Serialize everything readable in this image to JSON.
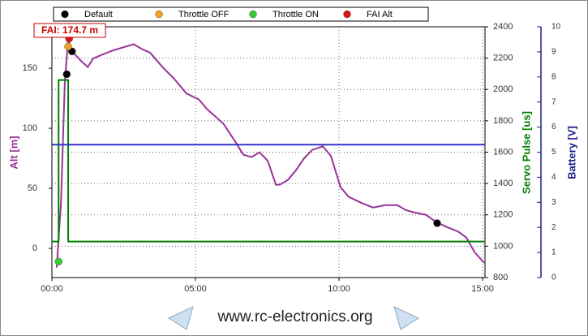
{
  "chart_data": {
    "type": "line",
    "annotation": "FAI: 174.7 m",
    "footer": "www.rc-electronics.org",
    "xlim": [
      0,
      905
    ],
    "xticks": [
      {
        "value": 0,
        "label": "00:00"
      },
      {
        "value": 300,
        "label": "05:00"
      },
      {
        "value": 600,
        "label": "10:00"
      },
      {
        "value": 900,
        "label": "15:00"
      }
    ],
    "ylabel": "Alt [m]",
    "ylim": [
      -24.3,
      184.5
    ],
    "yticks": [
      0,
      50,
      100,
      150
    ],
    "y2label": "Servo Pulse [us]",
    "y2lim": [
      800,
      2400
    ],
    "y2ticks": [
      800,
      1000,
      1200,
      1400,
      1600,
      1800,
      2000,
      2200,
      2400
    ],
    "y3label": "Battery [V]",
    "y3lim": [
      0,
      10
    ],
    "y3ticks": [
      0,
      1,
      2,
      3,
      4,
      5,
      6,
      7,
      8,
      9,
      10
    ],
    "grid": true,
    "series": [
      {
        "color": "#993399",
        "axis": "y",
        "x": [
          10,
          19,
          27,
          34,
          41,
          47,
          61,
          75,
          86,
          103,
          129,
          154,
          171,
          188,
          205,
          231,
          256,
          281,
          307,
          324,
          341,
          358,
          383,
          400,
          417,
          434,
          451,
          468,
          476,
          493,
          510,
          527,
          544,
          566,
          583,
          603,
          620,
          646,
          671,
          697,
          722,
          739,
          756,
          781,
          803,
          824,
          849,
          866,
          883,
          903
        ],
        "values": [
          -16,
          38,
          139,
          174,
          165,
          162,
          156,
          151,
          158,
          161,
          165,
          168,
          170,
          166,
          163,
          151,
          141,
          129,
          124,
          116,
          110,
          104,
          89,
          78,
          76,
          80,
          73,
          53,
          53,
          57,
          65,
          75,
          82,
          85,
          77,
          51,
          43,
          38,
          34,
          36,
          36,
          32,
          30,
          28,
          22,
          18,
          14,
          9,
          -3,
          -12
        ]
      },
      {
        "color": "#008000",
        "axis": "y2",
        "x": [
          0,
          14,
          14,
          34,
          34,
          905
        ],
        "values": [
          1030,
          1030,
          2060,
          2060,
          1030,
          1030
        ]
      },
      {
        "color": "#3333cc",
        "axis": "y3",
        "x": [
          0,
          905
        ],
        "values": [
          5.3,
          5.3
        ]
      }
    ],
    "markers": [
      {
        "name": "Default",
        "color": "#000000",
        "x": [
          31,
          42,
          805
        ],
        "values": [
          145,
          164,
          21
        ]
      },
      {
        "name": "Throttle OFF",
        "color": "#f5a020",
        "x": [
          34
        ],
        "values": [
          168
        ]
      },
      {
        "name": "Throttle ON",
        "color": "#33cc33",
        "x": [
          14
        ],
        "values": [
          -11
        ]
      },
      {
        "name": "FAI Alt",
        "color": "#dd1111",
        "x": [
          36
        ],
        "values": [
          174.7
        ]
      }
    ]
  }
}
